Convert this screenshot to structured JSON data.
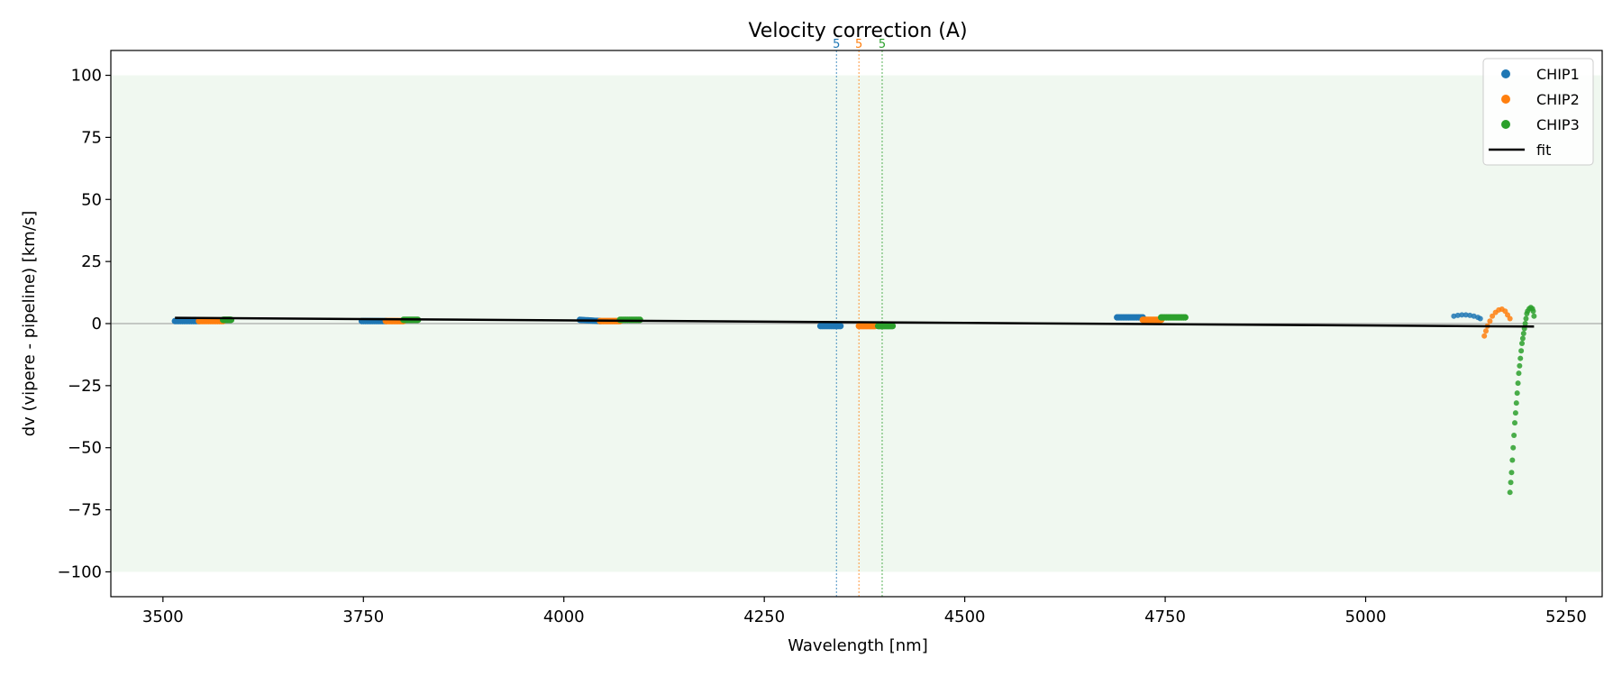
{
  "chart_data": {
    "type": "scatter",
    "title": "Velocity correction (A)",
    "xlabel": "Wavelength [nm]",
    "ylabel": "dv (vipere - pipeline) [km/s]",
    "xlim": [
      3435,
      5295
    ],
    "ylim": [
      -110,
      110
    ],
    "xticks": [
      3500,
      3750,
      4000,
      4250,
      4500,
      4750,
      5000,
      5250
    ],
    "yticks": [
      100,
      75,
      50,
      25,
      0,
      -25,
      -50,
      -75,
      -100
    ],
    "grid": false,
    "legend_position": "top-right",
    "shaded_band": {
      "y_from": -100,
      "y_to": 100,
      "color": "#f0f8f0"
    },
    "zero_line": {
      "y": 0,
      "color": "#999999"
    },
    "series": [
      {
        "name": "CHIP1",
        "color": "#1f77b4",
        "segments": [
          {
            "x_from": 3515,
            "x_to": 3545,
            "y_from": 1.0,
            "y_to": 1.0
          },
          {
            "x_from": 3748,
            "x_to": 3778,
            "y_from": 1.0,
            "y_to": 1.0
          },
          {
            "x_from": 4020,
            "x_to": 4045,
            "y_from": 1.5,
            "y_to": 1.0
          },
          {
            "x_from": 4320,
            "x_to": 4345,
            "y_from": -1.0,
            "y_to": -1.0
          },
          {
            "x_from": 4690,
            "x_to": 4722,
            "y_from": 2.5,
            "y_to": 2.5
          }
        ],
        "curve": [
          [
            5110,
            3.0
          ],
          [
            5115,
            3.3
          ],
          [
            5120,
            3.5
          ],
          [
            5125,
            3.5
          ],
          [
            5130,
            3.3
          ],
          [
            5135,
            3.0
          ],
          [
            5140,
            2.5
          ],
          [
            5143,
            2.0
          ]
        ]
      },
      {
        "name": "CHIP2",
        "color": "#ff7f0e",
        "segments": [
          {
            "x_from": 3545,
            "x_to": 3575,
            "y_from": 1.0,
            "y_to": 1.0
          },
          {
            "x_from": 3778,
            "x_to": 3800,
            "y_from": 1.0,
            "y_to": 1.0
          },
          {
            "x_from": 4045,
            "x_to": 4070,
            "y_from": 1.0,
            "y_to": 1.0
          },
          {
            "x_from": 4368,
            "x_to": 4388,
            "y_from": -1.0,
            "y_to": -1.0
          },
          {
            "x_from": 4722,
            "x_to": 4745,
            "y_from": 1.5,
            "y_to": 1.5
          }
        ],
        "curve": [
          [
            5148,
            -5.0
          ],
          [
            5150,
            -3.0
          ],
          [
            5152,
            -1.0
          ],
          [
            5155,
            1.0
          ],
          [
            5158,
            3.0
          ],
          [
            5162,
            4.5
          ],
          [
            5166,
            5.5
          ],
          [
            5170,
            5.8
          ],
          [
            5174,
            5.0
          ],
          [
            5177,
            3.5
          ],
          [
            5180,
            2.0
          ]
        ]
      },
      {
        "name": "CHIP3",
        "color": "#2ca02c",
        "segments": [
          {
            "x_from": 3575,
            "x_to": 3585,
            "y_from": 1.5,
            "y_to": 1.5
          },
          {
            "x_from": 3800,
            "x_to": 3818,
            "y_from": 1.5,
            "y_to": 1.5
          },
          {
            "x_from": 4070,
            "x_to": 4095,
            "y_from": 1.5,
            "y_to": 1.5
          },
          {
            "x_from": 4392,
            "x_to": 4410,
            "y_from": -1.0,
            "y_to": -1.0
          },
          {
            "x_from": 4745,
            "x_to": 4775,
            "y_from": 2.5,
            "y_to": 2.5
          }
        ],
        "curve": [
          [
            5180,
            -68
          ],
          [
            5181,
            -64
          ],
          [
            5182,
            -60
          ],
          [
            5183,
            -55
          ],
          [
            5184,
            -50
          ],
          [
            5185,
            -45
          ],
          [
            5186,
            -40
          ],
          [
            5187,
            -36
          ],
          [
            5188,
            -32
          ],
          [
            5189,
            -28
          ],
          [
            5190,
            -24
          ],
          [
            5191,
            -20
          ],
          [
            5192,
            -17
          ],
          [
            5193,
            -14
          ],
          [
            5194,
            -11
          ],
          [
            5195,
            -8
          ],
          [
            5196,
            -6
          ],
          [
            5197,
            -4
          ],
          [
            5198,
            -2
          ],
          [
            5199,
            0
          ],
          [
            5200,
            2
          ],
          [
            5201,
            4
          ],
          [
            5202,
            5
          ],
          [
            5204,
            6
          ],
          [
            5206,
            6.5
          ],
          [
            5208,
            6
          ],
          [
            5209,
            5
          ],
          [
            5210,
            3
          ]
        ]
      },
      {
        "name": "fit",
        "color": "#000000",
        "type": "line",
        "points": [
          [
            3515,
            2.3
          ],
          [
            5210,
            -1.2
          ]
        ]
      }
    ],
    "vertical_lines": [
      {
        "x": 4340,
        "label": "5",
        "color": "#1f77b4"
      },
      {
        "x": 4368,
        "label": "5",
        "color": "#ff7f0e"
      },
      {
        "x": 4397,
        "label": "5",
        "color": "#2ca02c"
      }
    ],
    "legend": [
      {
        "label": "CHIP1",
        "marker": "dot",
        "color": "#1f77b4"
      },
      {
        "label": "CHIP2",
        "marker": "dot",
        "color": "#ff7f0e"
      },
      {
        "label": "CHIP3",
        "marker": "dot",
        "color": "#2ca02c"
      },
      {
        "label": "fit",
        "marker": "line",
        "color": "#000000"
      }
    ]
  }
}
